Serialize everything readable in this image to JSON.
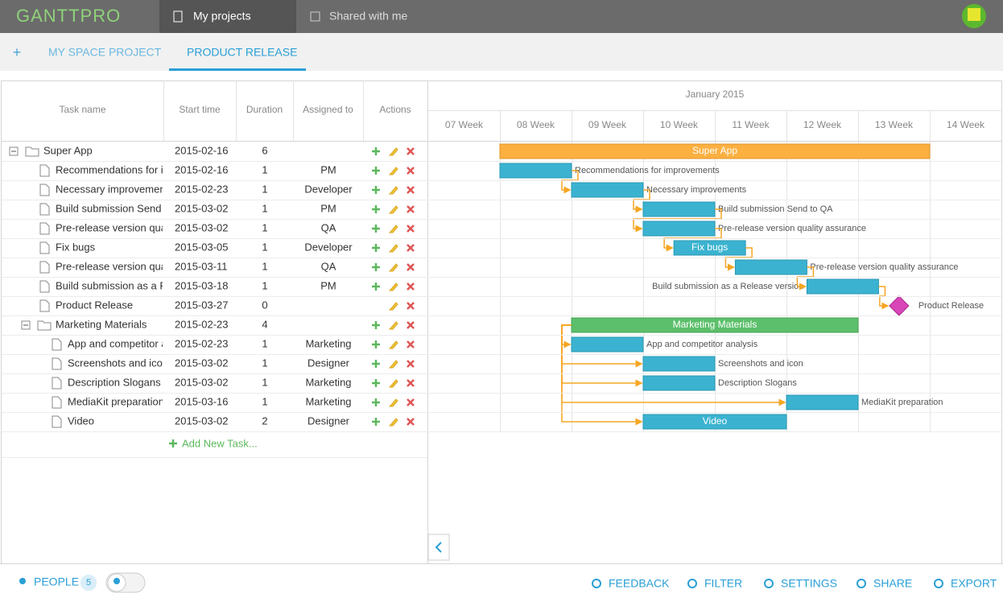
{
  "header": {
    "logo": "GANTTPRO",
    "tabs": [
      "My projects",
      "Shared with me"
    ]
  },
  "project_tabs": {
    "add": "+",
    "tabs": [
      "MY SPACE PROJECT",
      "PRODUCT RELEASE"
    ]
  },
  "table": {
    "columns": [
      "Task name",
      "Start time",
      "Duration",
      "Assigned to",
      "Actions"
    ],
    "add_task": "Add New Task..."
  },
  "timeline": {
    "month": "January 2015",
    "weeks": [
      "07 Week",
      "08 Week",
      "09 Week",
      "10 Week",
      "11 Week",
      "12 Week",
      "13 Week",
      "14 Week"
    ]
  },
  "tasks": [
    {
      "name": "Super App",
      "start": "2015-02-16",
      "duration": 6,
      "children": [
        {
          "name": "Recommendations for improvements",
          "start": "2015-02-16",
          "duration": 1,
          "assigned": "PM"
        },
        {
          "name": "Necessary improvements",
          "start": "2015-02-23",
          "duration": 1,
          "assigned": "Developer"
        },
        {
          "name": "Build submission Send to QA",
          "start": "2015-03-02",
          "duration": 1,
          "assigned": "PM"
        },
        {
          "name": "Pre-release version quality assurance",
          "start": "2015-03-02",
          "duration": 1,
          "assigned": "QA"
        },
        {
          "name": "Fix bugs",
          "start": "2015-03-05",
          "duration": 1,
          "assigned": "Developer"
        },
        {
          "name": "Pre-release version quality assurance",
          "start": "2015-03-11",
          "duration": 1,
          "assigned": "QA"
        },
        {
          "name": "Build submission as a Release version",
          "start": "2015-03-18",
          "duration": 1,
          "assigned": "PM"
        },
        {
          "name": "Product Release",
          "start": "2015-03-27",
          "duration": 0
        },
        {
          "name": "Marketing Materials",
          "start": "2015-02-23",
          "duration": 4,
          "children": [
            {
              "name": "App and competitor analysis",
              "start": "2015-02-23",
              "duration": 1,
              "assigned": "Marketing"
            },
            {
              "name": "Screenshots and icon",
              "start": "2015-03-02",
              "duration": 1,
              "assigned": "Designer"
            },
            {
              "name": "Description Slogans",
              "start": "2015-03-02",
              "duration": 1,
              "assigned": "Marketing"
            },
            {
              "name": "MediaKit preparation",
              "start": "2015-03-16",
              "duration": 1,
              "assigned": "Marketing"
            },
            {
              "name": "Video",
              "start": "2015-03-02",
              "duration": 2,
              "assigned": "Designer"
            }
          ]
        }
      ]
    }
  ],
  "footer": {
    "people": "PEOPLE",
    "people_count": 5,
    "actions": [
      "FEEDBACK",
      "FILTER",
      "SETTINGS",
      "SHARE",
      "EXPORT"
    ]
  }
}
